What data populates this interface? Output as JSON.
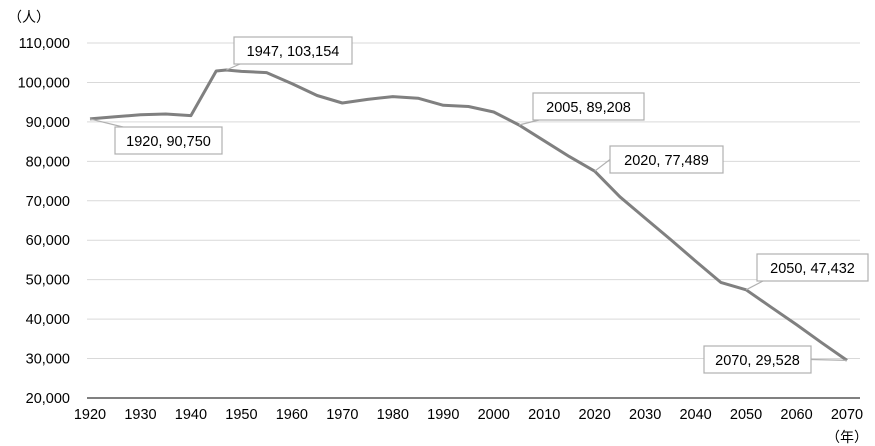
{
  "chart_data": {
    "type": "line",
    "y_unit": "（人）",
    "x_unit": "（年）",
    "xlim": [
      1919,
      2071
    ],
    "ylim": [
      20000,
      110000
    ],
    "x_ticks": [
      1920,
      1930,
      1940,
      1950,
      1960,
      1970,
      1980,
      1990,
      2000,
      2010,
      2020,
      2030,
      2040,
      2050,
      2060,
      2070
    ],
    "y_ticks": [
      20000,
      30000,
      40000,
      50000,
      60000,
      70000,
      80000,
      90000,
      100000,
      110000
    ],
    "x_tick_labels": [
      "1920",
      "1930",
      "1940",
      "1950",
      "1960",
      "1970",
      "1980",
      "1990",
      "2000",
      "2010",
      "2020",
      "2030",
      "2040",
      "2050",
      "2060",
      "2070"
    ],
    "y_tick_labels": [
      "20,000",
      "30,000",
      "40,000",
      "50,000",
      "60,000",
      "70,000",
      "80,000",
      "90,000",
      "100,000",
      "110,000"
    ],
    "grid": true,
    "legend": "none",
    "series_color": "#808080",
    "series": [
      {
        "x": [
          1920,
          1925,
          1930,
          1935,
          1940,
          1945,
          1947,
          1950,
          1955,
          1960,
          1965,
          1970,
          1975,
          1980,
          1985,
          1990,
          1995,
          2000,
          2005,
          2010,
          2015,
          2020,
          2025,
          2030,
          2035,
          2040,
          2045,
          2050,
          2055,
          2060,
          2065,
          2070
        ],
        "y": [
          90750,
          91300,
          91800,
          92000,
          91600,
          102900,
          103154,
          102800,
          102500,
          99700,
          96700,
          94800,
          95700,
          96400,
          96000,
          94200,
          93900,
          92500,
          89208,
          85200,
          81200,
          77489,
          71000,
          65600,
          60200,
          54700,
          49300,
          47432,
          43000,
          38600,
          34000,
          29528
        ]
      }
    ],
    "annotations": [
      {
        "x": 1920,
        "y": 90750,
        "label": "1920, 90,750"
      },
      {
        "x": 1947,
        "y": 103154,
        "label": "1947, 103,154"
      },
      {
        "x": 2005,
        "y": 89208,
        "label": "2005, 89,208"
      },
      {
        "x": 2020,
        "y": 77489,
        "label": "2020, 77,489"
      },
      {
        "x": 2050,
        "y": 47432,
        "label": "2050, 47,432"
      },
      {
        "x": 2070,
        "y": 29528,
        "label": "2070, 29,528"
      }
    ]
  }
}
